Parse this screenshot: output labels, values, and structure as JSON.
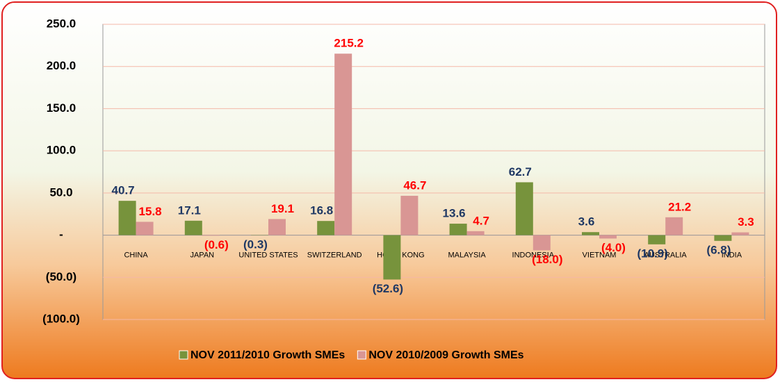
{
  "chart_data": {
    "type": "bar",
    "categories": [
      "CHINA",
      "JAPAN",
      "UNITED STATES",
      "SWITZERLAND",
      "HONG KONG",
      "MALAYSIA",
      "INDONESIA",
      "VIETNAM",
      "AUSTRALIA",
      "INDIA"
    ],
    "series": [
      {
        "name": "NOV 2011/2010 Growth SMEs",
        "color": "#77933c",
        "label_color": "#1f3864",
        "values": [
          40.7,
          17.1,
          -0.3,
          16.8,
          -52.6,
          13.6,
          62.7,
          3.6,
          -10.9,
          -6.8
        ],
        "value_labels": [
          "40.7",
          "17.1",
          "(0.3)",
          "16.8",
          "(52.6)",
          "13.6",
          "62.7",
          "3.6",
          "(10.9)",
          "(6.8)"
        ]
      },
      {
        "name": "NOV 2010/2009 Growth SMEs",
        "color": "#d99694",
        "label_color": "#ff0000",
        "values": [
          15.8,
          -0.6,
          19.1,
          215.2,
          46.7,
          4.7,
          -18.0,
          -4.0,
          21.2,
          3.3
        ],
        "value_labels": [
          "15.8",
          "(0.6)",
          "19.1",
          "215.2",
          "46.7",
          "4.7",
          "(18.0)",
          "(4.0)",
          "21.2",
          "3.3"
        ]
      }
    ],
    "ylim": [
      -100,
      250
    ],
    "yticks": [
      {
        "value": -100,
        "label": "(100.0)"
      },
      {
        "value": -50,
        "label": "(50.0)"
      },
      {
        "value": 0,
        "label": "-"
      },
      {
        "value": 50,
        "label": "50.0"
      },
      {
        "value": 100,
        "label": "100.0"
      },
      {
        "value": 150,
        "label": "150.0"
      },
      {
        "value": 200,
        "label": "200.0"
      },
      {
        "value": 250,
        "label": "250.0"
      }
    ],
    "grid": true,
    "legend": "bottom"
  }
}
